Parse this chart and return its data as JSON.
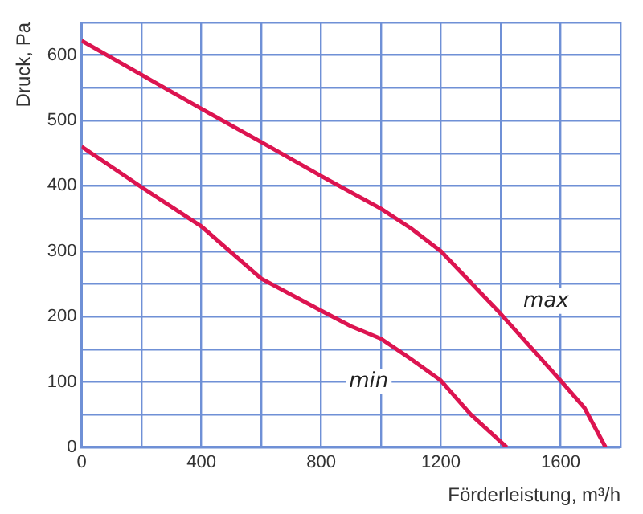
{
  "chart_data": {
    "type": "line",
    "xlabel": "Förderleistung, m³/h",
    "ylabel": "Druck, Pa",
    "xlim": [
      0,
      1800
    ],
    "ylim": [
      0,
      650
    ],
    "xticks": [
      {
        "value": 0,
        "label": "0"
      },
      {
        "value": 200,
        "label": null
      },
      {
        "value": 400,
        "label": "400"
      },
      {
        "value": 600,
        "label": null
      },
      {
        "value": 800,
        "label": "800"
      },
      {
        "value": 1000,
        "label": null
      },
      {
        "value": 1200,
        "label": "1200"
      },
      {
        "value": 1400,
        "label": null
      },
      {
        "value": 1600,
        "label": "1600"
      },
      {
        "value": 1800,
        "label": null
      }
    ],
    "yticks": [
      0,
      {
        "value": 50,
        "label": null
      },
      100,
      {
        "value": 150,
        "label": null
      },
      200,
      {
        "value": 250,
        "label": null
      },
      300,
      {
        "value": 350,
        "label": null
      },
      400,
      {
        "value": 450,
        "label": null
      },
      500,
      {
        "value": 550,
        "label": null
      },
      600,
      {
        "value": 650,
        "label": null
      }
    ],
    "grid": true,
    "legend": false,
    "marker": "none",
    "line_style": "solid",
    "series": [
      {
        "name": "max",
        "color": "#dc1450",
        "x": [
          0,
          200,
          400,
          600,
          800,
          1000,
          1100,
          1200,
          1400,
          1600,
          1680,
          1750
        ],
        "values": [
          622,
          570,
          518,
          467,
          415,
          365,
          335,
          300,
          204,
          102,
          60,
          0
        ]
      },
      {
        "name": "min",
        "color": "#dc1450",
        "x": [
          0,
          200,
          400,
          600,
          800,
          900,
          1000,
          1100,
          1200,
          1300,
          1420
        ],
        "values": [
          460,
          398,
          338,
          258,
          209,
          185,
          166,
          135,
          102,
          50,
          0
        ]
      }
    ]
  }
}
